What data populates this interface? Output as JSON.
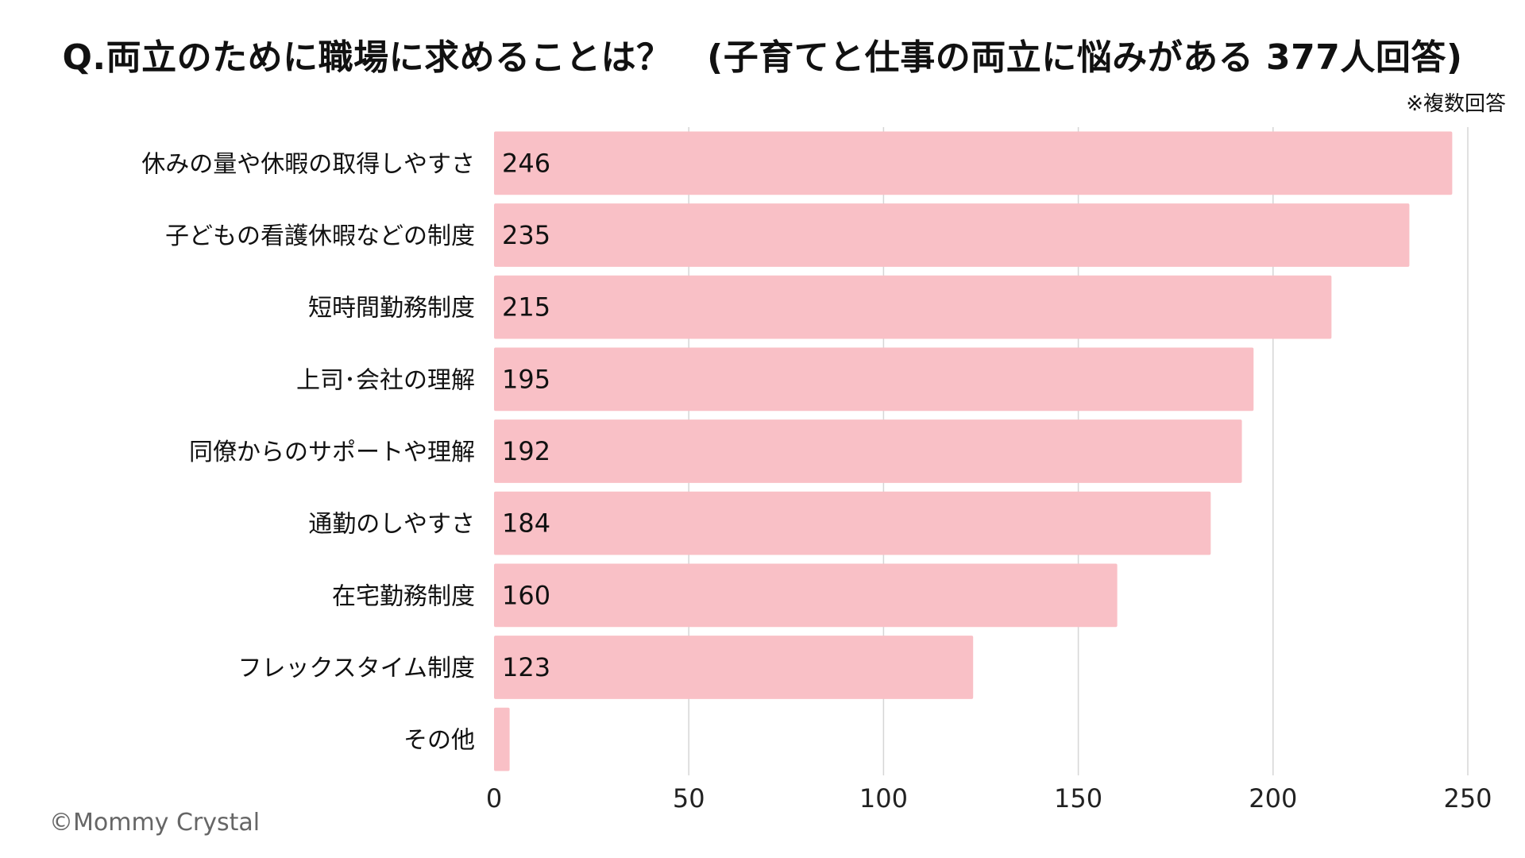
{
  "chart_data": {
    "type": "bar",
    "orientation": "horizontal",
    "title": "Q.両立のために職場に求めることは？　(子育てと仕事の両立に悩みがある 377人回答)",
    "note": "※複数回答",
    "categories": [
      "休みの量や休暇の取得しやすさ",
      "子どもの看護休暇などの制度",
      "短時間勤務制度",
      "上司･会社の理解",
      "同僚からのサポートや理解",
      "通勤のしやすさ",
      "在宅勤務制度",
      "フレックスタイム制度",
      "その他"
    ],
    "values": [
      246,
      235,
      215,
      195,
      192,
      184,
      160,
      123,
      4
    ],
    "data_labels": [
      "246",
      "235",
      "215",
      "195",
      "192",
      "184",
      "160",
      "123",
      ""
    ],
    "xlim": [
      0,
      250
    ],
    "xticks": [
      0,
      50,
      100,
      150,
      200,
      250
    ],
    "xlabel": "",
    "ylabel": "",
    "grid": "vertical",
    "legend": "none",
    "bar_color": "#f9c0c6",
    "grid_color": "#d6d6d6"
  },
  "footer": {
    "copyright": "©Mommy Crystal"
  }
}
